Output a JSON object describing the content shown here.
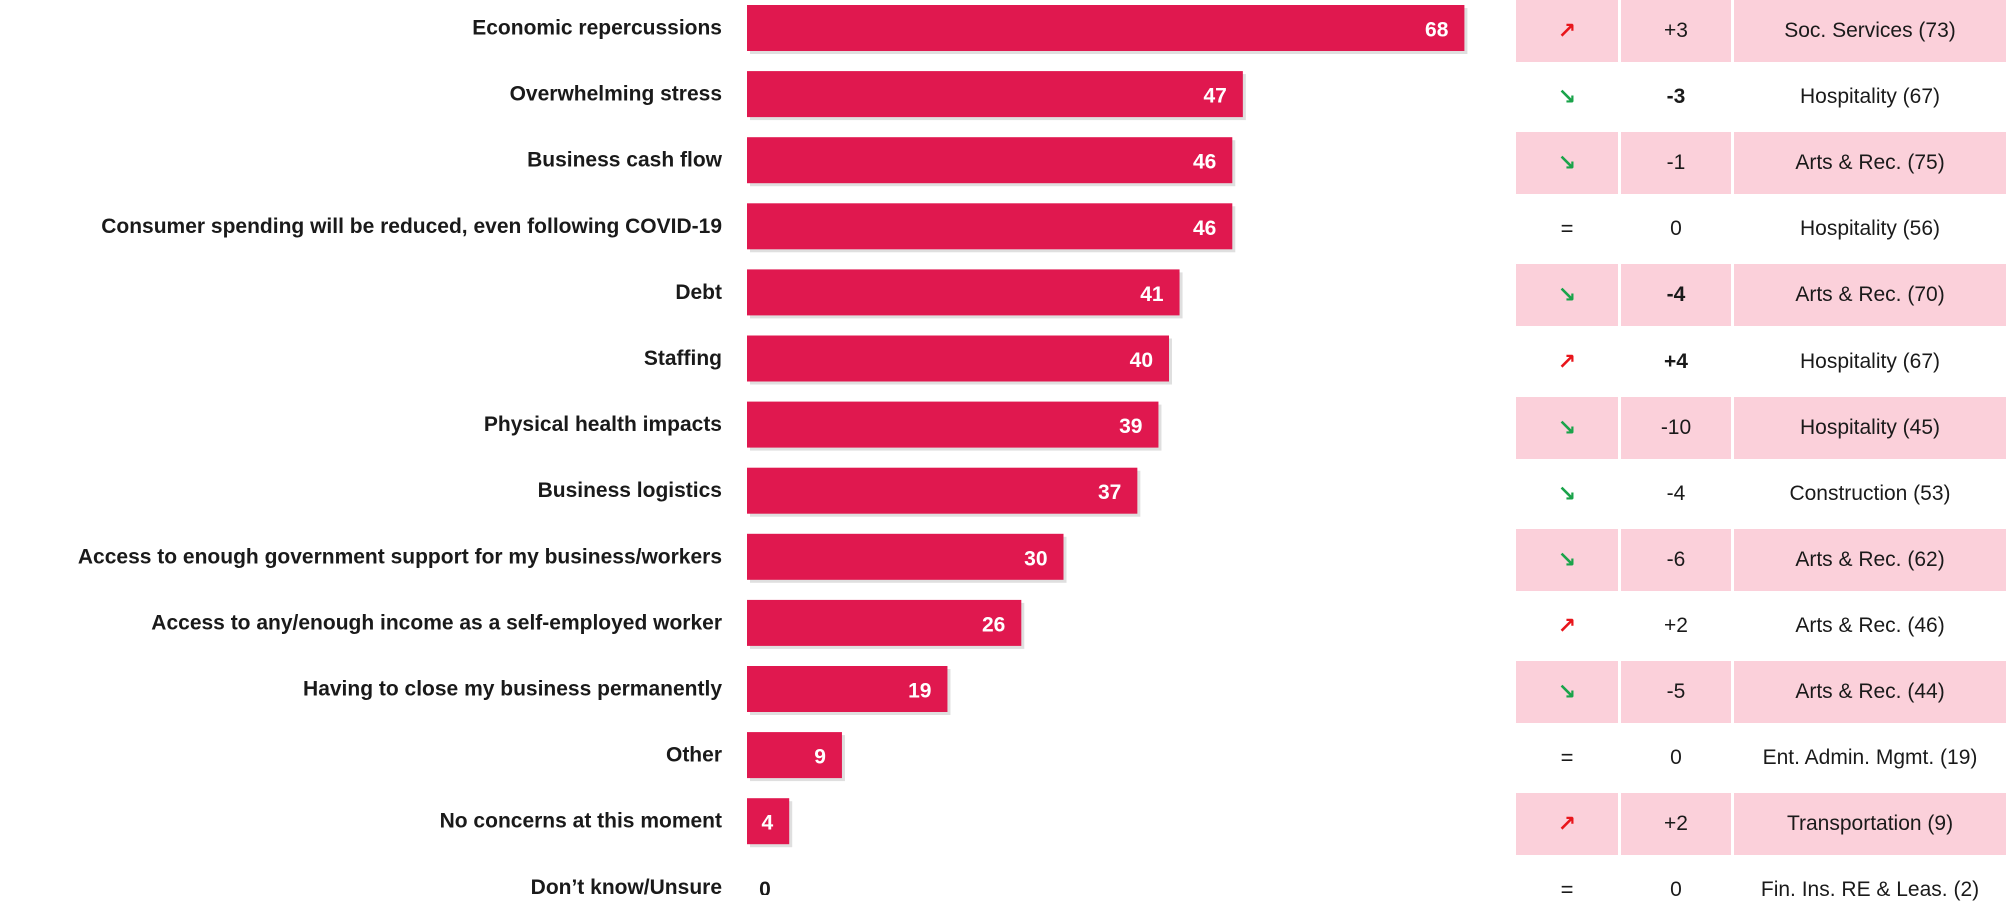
{
  "chart_data": {
    "type": "bar",
    "orientation": "horizontal",
    "categories": [
      "Economic repercussions",
      "Overwhelming stress",
      "Business cash flow",
      "Consumer spending will be reduced, even following COVID-19",
      "Debt",
      "Staffing",
      "Physical health impacts",
      "Business logistics",
      "Access to enough government support for my business/workers",
      "Access to any/enough income as a self-employed worker",
      "Having to close my business permanently",
      "Other",
      "No concerns at this moment",
      "Don’t know/Unsure"
    ],
    "values": [
      68,
      47,
      46,
      46,
      41,
      40,
      39,
      37,
      30,
      26,
      19,
      9,
      4,
      0
    ],
    "xlim": [
      0,
      100
    ],
    "grid": false,
    "legend": "none",
    "bar_color": "#e0184f"
  },
  "side_table": {
    "rows": [
      {
        "arrow": "up-icon",
        "change": "+3",
        "bold": false,
        "top": "Soc. Services (73)"
      },
      {
        "arrow": "down-icon",
        "change": "-3",
        "bold": true,
        "top": "Hospitality (67)"
      },
      {
        "arrow": "down-icon",
        "change": "-1",
        "bold": false,
        "top": "Arts & Rec. (75)"
      },
      {
        "arrow": "equal-icon",
        "change": "0",
        "bold": false,
        "top": "Hospitality (56)"
      },
      {
        "arrow": "down-icon",
        "change": "-4",
        "bold": true,
        "top": "Arts & Rec. (70)"
      },
      {
        "arrow": "up-icon",
        "change": "+4",
        "bold": true,
        "top": "Hospitality (67)"
      },
      {
        "arrow": "down-icon",
        "change": "-10",
        "bold": false,
        "top": "Hospitality (45)"
      },
      {
        "arrow": "down-icon",
        "change": "-4",
        "bold": false,
        "top": "Construction (53)"
      },
      {
        "arrow": "down-icon",
        "change": "-6",
        "bold": false,
        "top": "Arts & Rec. (62)"
      },
      {
        "arrow": "up-icon",
        "change": "+2",
        "bold": false,
        "top": "Arts & Rec. (46)"
      },
      {
        "arrow": "down-icon",
        "change": "-5",
        "bold": false,
        "top": "Arts & Rec. (44)"
      },
      {
        "arrow": "equal-icon",
        "change": "0",
        "bold": false,
        "top": "Ent. Admin. Mgmt. (19)"
      },
      {
        "arrow": "up-icon",
        "change": "+2",
        "bold": false,
        "top": "Transportation (9)"
      },
      {
        "arrow": "equal-icon",
        "change": "0",
        "bold": false,
        "top": "Fin. Ins. RE & Leas. (2)"
      }
    ],
    "colors": {
      "shade": "#fbd0da",
      "up": "#e8151b",
      "down": "#1aa34a"
    }
  }
}
